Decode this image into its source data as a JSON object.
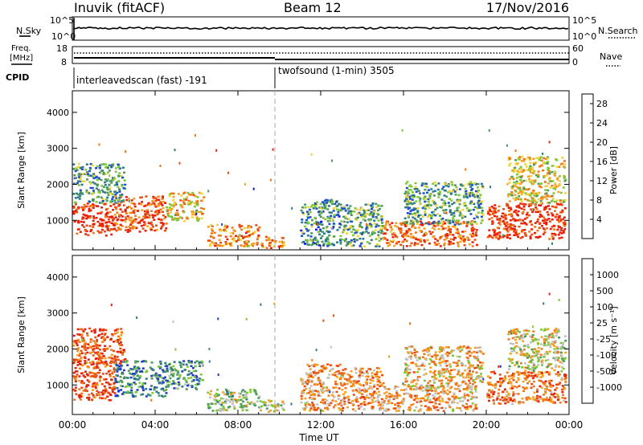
{
  "header": {
    "station": "Inuvik (fitACF)",
    "beam": "Beam 12",
    "date": "17/Nov/2016"
  },
  "top_panel": {
    "nsky_label": "N.Sky",
    "nsky_ticks": [
      "10^5",
      "10^0"
    ],
    "nsearch_label": "N.Search",
    "nsearch_ticks": [
      "10^5",
      "10^0"
    ],
    "freq_label_1": "Freq.",
    "freq_label_2": "[MHz]",
    "freq_ticks": [
      "18",
      "8"
    ],
    "nave_label": "Nave",
    "nave_ticks": [
      "60",
      "0"
    ],
    "cpid_label": "CPID",
    "cpid_segments": [
      {
        "label": "interleavedscan (fast) -191",
        "start_h": 0,
        "end_h": 10
      },
      {
        "label": "twofsound (1-min) 3505",
        "start_h": 10,
        "end_h": 24
      }
    ]
  },
  "chart_data": [
    {
      "type": "heatmap",
      "name": "power",
      "ylabel": "Slant Range [km]",
      "y_ticks": [
        "1000",
        "2000",
        "3000",
        "4000"
      ],
      "ylim": [
        180,
        4600
      ],
      "xlim": [
        0,
        24
      ],
      "colorbar_label": "Power [dB]",
      "colorbar_ticks": [
        "4",
        "8",
        "12",
        "16",
        "20",
        "24",
        "28"
      ],
      "colorbar_colors": [
        "#0a14e6",
        "#1e50c8",
        "#2f7a8a",
        "#4c9a5a",
        "#7fc83a",
        "#f0d23c",
        "#f5a020",
        "#f07818",
        "#ec4a10",
        "#e61e0a"
      ],
      "regions": [
        {
          "x0": 0,
          "x1": 2,
          "y0": 600,
          "y1": 1500,
          "level": 0.95
        },
        {
          "x0": 2,
          "x1": 4.5,
          "y0": 700,
          "y1": 1700,
          "level": 0.85
        },
        {
          "x0": 4.5,
          "x1": 6.3,
          "y0": 1000,
          "y1": 1800,
          "level": 0.6
        },
        {
          "x0": 0,
          "x1": 2.5,
          "y0": 1500,
          "y1": 2600,
          "level": 0.35
        },
        {
          "x0": 6.5,
          "x1": 9,
          "y0": 300,
          "y1": 900,
          "level": 0.7
        },
        {
          "x0": 9,
          "x1": 10.2,
          "y0": 250,
          "y1": 600,
          "level": 0.75
        },
        {
          "x0": 11,
          "x1": 13,
          "y0": 300,
          "y1": 1600,
          "level": 0.3
        },
        {
          "x0": 13,
          "x1": 15,
          "y0": 300,
          "y1": 1500,
          "level": 0.35
        },
        {
          "x0": 15,
          "x1": 19.5,
          "y0": 300,
          "y1": 1000,
          "level": 0.8
        },
        {
          "x0": 16,
          "x1": 19.8,
          "y0": 900,
          "y1": 2100,
          "level": 0.35
        },
        {
          "x0": 20,
          "x1": 23.8,
          "y0": 500,
          "y1": 1500,
          "level": 0.95
        },
        {
          "x0": 21,
          "x1": 23.8,
          "y0": 1500,
          "y1": 2800,
          "level": 0.55
        }
      ]
    },
    {
      "type": "heatmap",
      "name": "velocity",
      "ylabel": "Slant Range [km]",
      "xlabel": "Time UT",
      "x_ticks": [
        "00:00",
        "04:00",
        "08:00",
        "12:00",
        "16:00",
        "20:00",
        "00:00"
      ],
      "y_ticks": [
        "1000",
        "2000",
        "3000",
        "4000"
      ],
      "ylim": [
        180,
        4600
      ],
      "xlim": [
        0,
        24
      ],
      "colorbar_label": "Velocity [m s⁻¹]",
      "colorbar_ticks": [
        "1000",
        "500",
        "100",
        "25",
        "-25",
        "-100",
        "-500",
        "-1000"
      ],
      "colorbar_colors": [
        "#1e3cc8",
        "#2f7a8a",
        "#4c9a5a",
        "#7fc83a",
        "#c0c0bc",
        "#f5a020",
        "#f07818",
        "#ec4a10",
        "#e61e0a"
      ],
      "regions": [
        {
          "x0": 0,
          "x1": 2,
          "y0": 600,
          "y1": 1700,
          "level": 0.85
        },
        {
          "x0": 2,
          "x1": 4.5,
          "y0": 700,
          "y1": 1700,
          "level": 0.2
        },
        {
          "x0": 4.5,
          "x1": 6.3,
          "y0": 900,
          "y1": 1700,
          "level": 0.25
        },
        {
          "x0": 0,
          "x1": 2.5,
          "y0": 1600,
          "y1": 2600,
          "level": 0.8
        },
        {
          "x0": 6.5,
          "x1": 9,
          "y0": 300,
          "y1": 900,
          "level": 0.4
        },
        {
          "x0": 9,
          "x1": 10.2,
          "y0": 250,
          "y1": 600,
          "level": 0.45
        },
        {
          "x0": 11,
          "x1": 13,
          "y0": 300,
          "y1": 1600,
          "level": 0.65
        },
        {
          "x0": 13,
          "x1": 15,
          "y0": 300,
          "y1": 1500,
          "level": 0.7
        },
        {
          "x0": 15,
          "x1": 19.5,
          "y0": 300,
          "y1": 1000,
          "level": 0.65
        },
        {
          "x0": 16,
          "x1": 19.8,
          "y0": 900,
          "y1": 2100,
          "level": 0.6
        },
        {
          "x0": 20,
          "x1": 23.8,
          "y0": 500,
          "y1": 1400,
          "level": 0.75
        },
        {
          "x0": 21,
          "x1": 23.8,
          "y0": 1400,
          "y1": 2600,
          "level": 0.5
        }
      ]
    }
  ]
}
